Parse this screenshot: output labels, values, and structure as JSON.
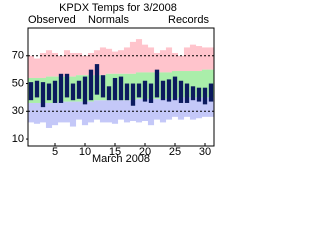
{
  "chart_data": {
    "type": "range_bar",
    "title": "KPDX Temps for 3/2008",
    "x_label": "March 2008",
    "x": [
      1,
      2,
      3,
      4,
      5,
      6,
      7,
      8,
      9,
      10,
      11,
      12,
      13,
      14,
      15,
      16,
      17,
      18,
      19,
      20,
      21,
      22,
      23,
      24,
      25,
      26,
      27,
      28,
      29,
      30,
      31
    ],
    "xlim": [
      0.5,
      31.5
    ],
    "xticks": [
      5,
      10,
      15,
      20,
      25,
      30
    ],
    "ylim": [
      5,
      90
    ],
    "yticks": [
      10,
      30,
      50,
      70
    ],
    "reference_lines": [
      70,
      30
    ],
    "series": [
      {
        "name": "Observed",
        "color": "#0b1a5e",
        "high": [
          51,
          52,
          51,
          50,
          52,
          57,
          57,
          50,
          52,
          55,
          60,
          64,
          56,
          48,
          54,
          55,
          50,
          50,
          50,
          52,
          50,
          60,
          52,
          53,
          55,
          52,
          50,
          48,
          47,
          47,
          50
        ],
        "low": [
          38,
          40,
          33,
          38,
          36,
          36,
          40,
          38,
          39,
          35,
          38,
          42,
          40,
          38,
          38,
          38,
          38,
          34,
          40,
          37,
          36,
          40,
          38,
          37,
          38,
          36,
          36,
          38,
          37,
          35,
          37
        ]
      },
      {
        "name": "Normals",
        "color": "#aaeeaa",
        "high": [
          54,
          54,
          54,
          55,
          55,
          55,
          55,
          55,
          56,
          56,
          56,
          56,
          56,
          57,
          57,
          57,
          57,
          57,
          58,
          58,
          58,
          58,
          58,
          58,
          59,
          59,
          59,
          59,
          59,
          60,
          60
        ],
        "low": [
          36,
          36,
          36,
          36,
          36,
          37,
          37,
          37,
          37,
          37,
          37,
          38,
          38,
          38,
          38,
          38,
          38,
          38,
          39,
          39,
          39,
          39,
          39,
          39,
          39,
          40,
          40,
          40,
          40,
          40,
          40
        ]
      },
      {
        "name": "Records",
        "color": "#c8a0e8",
        "high_color": "#ffc4cc",
        "low_color": "#c4c8f8",
        "high": [
          70,
          68,
          72,
          74,
          72,
          70,
          74,
          72,
          72,
          70,
          72,
          74,
          76,
          75,
          73,
          74,
          76,
          80,
          82,
          78,
          76,
          72,
          74,
          76,
          72,
          70,
          76,
          78,
          77,
          76,
          76
        ],
        "low": [
          22,
          21,
          22,
          18,
          20,
          22,
          22,
          19,
          24,
          20,
          22,
          24,
          22,
          22,
          21,
          24,
          22,
          23,
          22,
          23,
          20,
          24,
          22,
          24,
          26,
          24,
          26,
          24,
          25,
          26,
          26
        ]
      }
    ]
  }
}
